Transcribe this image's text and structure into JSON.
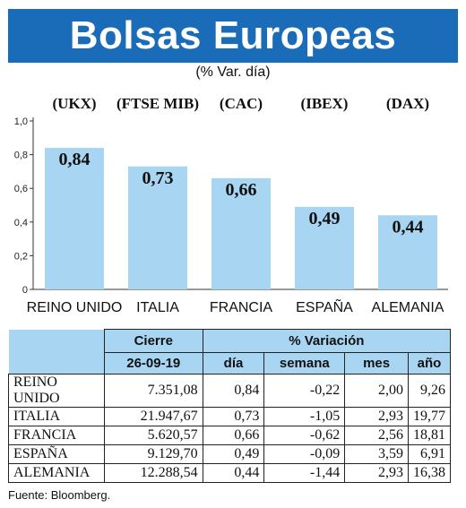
{
  "title": "Bolsas Europeas",
  "subtitle": "(% Var. día)",
  "source": "Fuente: Bloomberg.",
  "colors": {
    "title_bg": "#1a6cb8",
    "bar": "#a8d6f2",
    "table_header": "#a8d6f2"
  },
  "chart_data": {
    "type": "bar",
    "title": "Bolsas Europeas",
    "subtitle": "(% Var. día)",
    "categories": [
      "REINO UNIDO",
      "ITALIA",
      "FRANCIA",
      "ESPAÑA",
      "ALEMANIA"
    ],
    "codes": [
      "(UKX)",
      "(FTSE MIB)",
      "(CAC)",
      "(IBEX)",
      "(DAX)"
    ],
    "values": [
      0.84,
      0.73,
      0.66,
      0.49,
      0.44
    ],
    "value_labels": [
      "0,84",
      "0,73",
      "0,66",
      "0,49",
      "0,44"
    ],
    "ylim": [
      0,
      1.0
    ],
    "yticks": [
      "0",
      "0,2",
      "0,4",
      "0,6",
      "0,8",
      "1,0"
    ],
    "grid": false,
    "legend": "none"
  },
  "table": {
    "header_cierre": "Cierre",
    "header_variacion": "% Variación",
    "date": "26-09-19",
    "columns": [
      "día",
      "semana",
      "mes",
      "año"
    ],
    "rows": [
      {
        "name": "REINO UNIDO",
        "cierre": "7.351,08",
        "dia": "0,84",
        "semana": "-0,22",
        "mes": "2,00",
        "ano": "9,26"
      },
      {
        "name": "ITALIA",
        "cierre": "21.947,67",
        "dia": "0,73",
        "semana": "-1,05",
        "mes": "2,93",
        "ano": "19,77"
      },
      {
        "name": "FRANCIA",
        "cierre": "5.620,57",
        "dia": "0,66",
        "semana": "-0,62",
        "mes": "2,56",
        "ano": "18,81"
      },
      {
        "name": "ESPAÑA",
        "cierre": "9.129,70",
        "dia": "0,49",
        "semana": "-0,09",
        "mes": "3,59",
        "ano": "6,91"
      },
      {
        "name": "ALEMANIA",
        "cierre": "12.288,54",
        "dia": "0,44",
        "semana": "-1,44",
        "mes": "2,93",
        "ano": "16,38"
      }
    ]
  }
}
